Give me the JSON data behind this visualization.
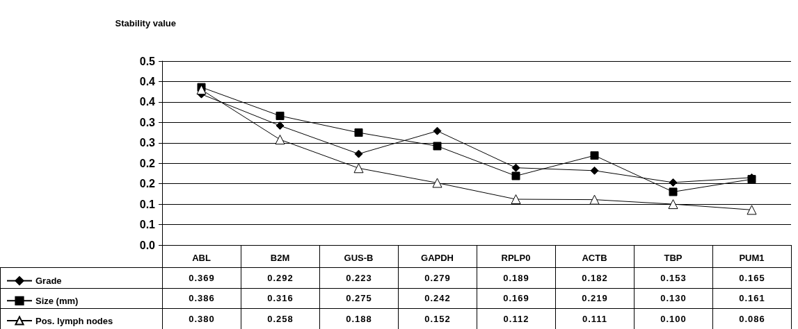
{
  "chart_data": {
    "type": "line",
    "ylabel": "Stability value",
    "categories": [
      "ABL",
      "B2M",
      "GUS-B",
      "GAPDH",
      "RPLP0",
      "ACTB",
      "TBP",
      "PUM1"
    ],
    "series": [
      {
        "name": "Grade",
        "color": "#000000",
        "marker": "diamond",
        "values": [
          0.369,
          0.292,
          0.223,
          0.279,
          0.189,
          0.182,
          0.153,
          0.165
        ],
        "value_labels": [
          "0.369",
          "0.292",
          "0.223",
          "0.279",
          "0.189",
          "0.182",
          "0.153",
          "0.165"
        ]
      },
      {
        "name": "Size (mm)",
        "color": "#000000",
        "marker": "square",
        "values": [
          0.386,
          0.316,
          0.275,
          0.242,
          0.169,
          0.219,
          0.13,
          0.161
        ],
        "value_labels": [
          "0.386",
          "0.316",
          "0.275",
          "0.242",
          "0.169",
          "0.219",
          "0.130",
          "0.161"
        ]
      },
      {
        "name": "Pos. lymph nodes",
        "color": "#000000",
        "marker": "triangle",
        "values": [
          0.38,
          0.258,
          0.188,
          0.152,
          0.112,
          0.111,
          0.1,
          0.086
        ],
        "value_labels": [
          "0.380",
          "0.258",
          "0.188",
          "0.152",
          "0.112",
          "0.111",
          "0.100",
          "0.086"
        ]
      }
    ],
    "ylim": [
      0,
      0.45
    ],
    "yticks": [
      {
        "value": 0,
        "label": "0.0"
      },
      {
        "value": 0.05,
        "label": "0.1"
      },
      {
        "value": 0.1,
        "label": "0.1"
      },
      {
        "value": 0.15,
        "label": "0.2"
      },
      {
        "value": 0.2,
        "label": "0.2"
      },
      {
        "value": 0.25,
        "label": "0.3"
      },
      {
        "value": 0.3,
        "label": "0.3"
      },
      {
        "value": 0.35,
        "label": "0.4"
      },
      {
        "value": 0.4,
        "label": "0.4"
      },
      {
        "value": 0.45,
        "label": "0.5"
      }
    ],
    "grid": "y",
    "legend": "bottom left"
  }
}
